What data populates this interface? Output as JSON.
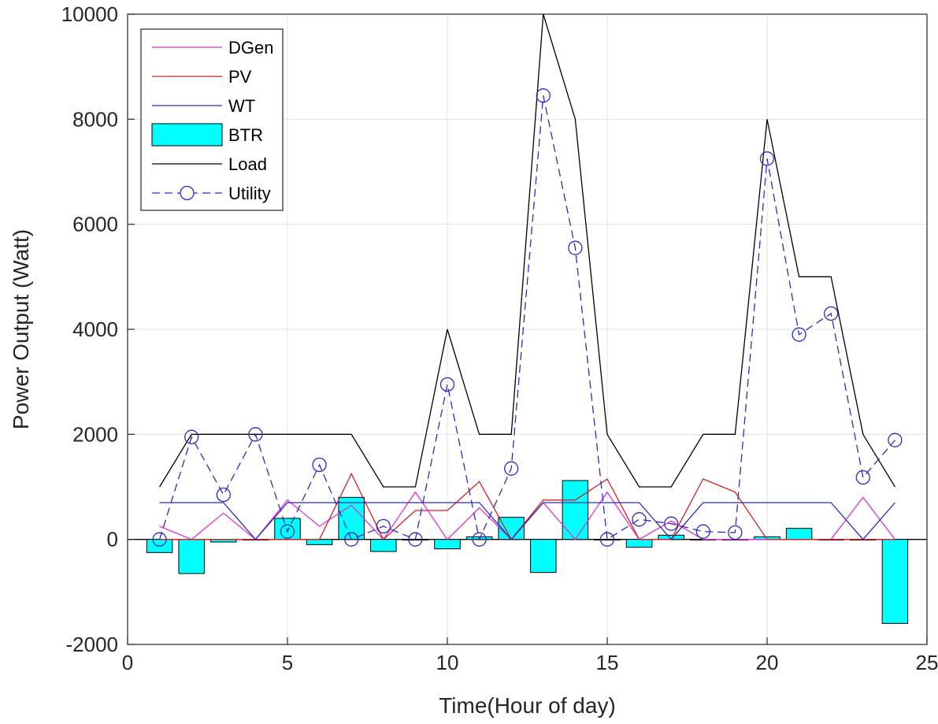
{
  "chart_data": {
    "type": "bar",
    "xlabel": "Time(Hour of day)",
    "ylabel": "Power Output (Watt)",
    "xlim": [
      0,
      25
    ],
    "ylim": [
      -2000,
      10000
    ],
    "xticks": [
      "0",
      "5",
      "10",
      "15",
      "20",
      "25"
    ],
    "yticks": [
      "-2000",
      "0",
      "2000",
      "4000",
      "6000",
      "8000",
      "10000"
    ],
    "grid": true,
    "legend_position": "top-left",
    "x": [
      1,
      2,
      3,
      4,
      5,
      6,
      7,
      8,
      9,
      10,
      11,
      12,
      13,
      14,
      15,
      16,
      17,
      18,
      19,
      20,
      21,
      22,
      23,
      24
    ],
    "series": [
      {
        "name": "DGen",
        "type": "line",
        "color": "#e032d0",
        "values": [
          250,
          0,
          500,
          0,
          750,
          250,
          650,
          0,
          900,
          0,
          600,
          0,
          700,
          0,
          900,
          0,
          350,
          0,
          0,
          0,
          0,
          0,
          800,
          0
        ]
      },
      {
        "name": "PV",
        "type": "line",
        "color": "#d42222",
        "values": [
          0,
          0,
          0,
          0,
          0,
          0,
          1250,
          0,
          550,
          550,
          1100,
          0,
          750,
          750,
          1150,
          0,
          0,
          1150,
          900,
          0,
          0,
          0,
          0,
          0
        ]
      },
      {
        "name": "WT",
        "type": "line",
        "color": "#2b2bb5",
        "values": [
          700,
          700,
          700,
          0,
          700,
          700,
          700,
          700,
          700,
          700,
          700,
          0,
          700,
          700,
          700,
          700,
          0,
          700,
          700,
          700,
          700,
          700,
          0,
          700
        ]
      },
      {
        "name": "BTR",
        "type": "bar",
        "color": "#00ffff",
        "values": [
          -250,
          -650,
          -50,
          0,
          400,
          -100,
          800,
          -230,
          0,
          -180,
          50,
          420,
          -630,
          1120,
          0,
          -150,
          80,
          0,
          0,
          50,
          210,
          0,
          0,
          -1600
        ]
      },
      {
        "name": "Load",
        "type": "line",
        "color": "#000000",
        "values": [
          1000,
          2000,
          2000,
          2000,
          2000,
          2000,
          2000,
          1000,
          1000,
          4000,
          2000,
          2000,
          10000,
          8000,
          2000,
          1000,
          1000,
          2000,
          2000,
          8000,
          5000,
          5000,
          2000,
          1000
        ]
      },
      {
        "name": "Utility",
        "type": "line-marker",
        "color": "#2b2bc8",
        "values": [
          0,
          1950,
          850,
          2000,
          150,
          1420,
          0,
          250,
          0,
          2950,
          0,
          1350,
          8450,
          5550,
          0,
          380,
          300,
          150,
          130,
          7250,
          3900,
          4300,
          1180,
          1890
        ]
      }
    ]
  }
}
